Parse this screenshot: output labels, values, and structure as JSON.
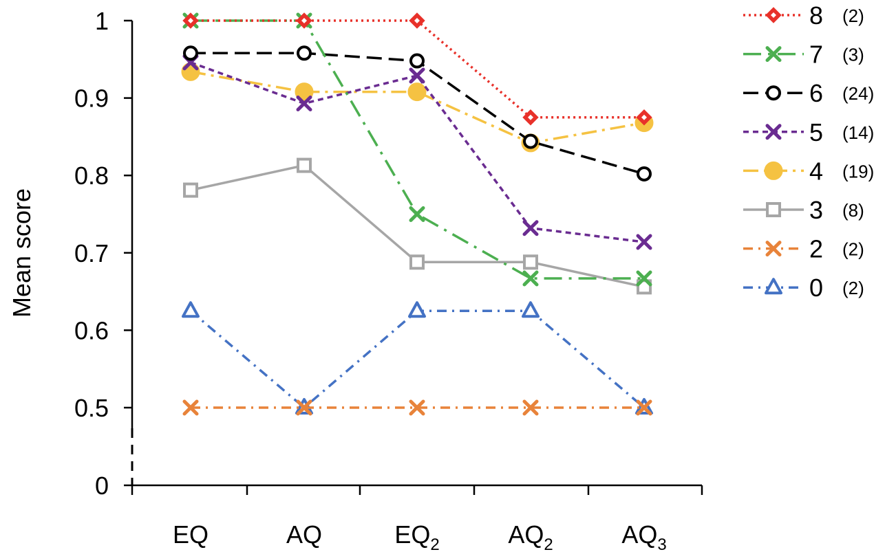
{
  "chart_data": {
    "type": "line",
    "ylabel": "Mean score",
    "categories": [
      {
        "base": "EQ",
        "sub": ""
      },
      {
        "base": "AQ",
        "sub": ""
      },
      {
        "base": "EQ",
        "sub": "2"
      },
      {
        "base": "AQ",
        "sub": "2"
      },
      {
        "base": "AQ",
        "sub": "3"
      }
    ],
    "y_axis": {
      "broken": true,
      "ticks": [
        {
          "label": "1",
          "value": 1.0
        },
        {
          "label": "0.9",
          "value": 0.9
        },
        {
          "label": "0.8",
          "value": 0.8
        },
        {
          "label": "0.7",
          "value": 0.7
        },
        {
          "label": "0.6",
          "value": 0.6
        },
        {
          "label": "0.5",
          "value": 0.5
        },
        {
          "label": "0",
          "value": 0
        }
      ],
      "ylim_upper": [
        0.5,
        1.0
      ]
    },
    "grid": false,
    "legend_position": "right",
    "series": [
      {
        "name": "8",
        "count": "(2)",
        "color": "#e8312a",
        "marker": "diamond",
        "dash": "dotted",
        "values": [
          1.0,
          1.0,
          1.0,
          0.875,
          0.875
        ]
      },
      {
        "name": "7",
        "count": "(3)",
        "color": "#4caf50",
        "marker": "x",
        "dash": "dashdot-long",
        "values": [
          1.0,
          1.0,
          0.75,
          0.667,
          0.667
        ]
      },
      {
        "name": "6",
        "count": "(24)",
        "color": "#000000",
        "marker": "circle-open",
        "dash": "long-dash",
        "values": [
          0.958,
          0.958,
          0.948,
          0.844,
          0.802
        ]
      },
      {
        "name": "5",
        "count": "(14)",
        "color": "#6a2c91",
        "marker": "x",
        "dash": "short-dash",
        "values": [
          0.946,
          0.893,
          0.929,
          0.732,
          0.714
        ]
      },
      {
        "name": "4",
        "count": "(19)",
        "color": "#f5c242",
        "marker": "circle-filled",
        "dash": "long-dash-dot",
        "values": [
          0.934,
          0.908,
          0.908,
          0.842,
          0.868
        ]
      },
      {
        "name": "3",
        "count": "(8)",
        "color": "#a6a6a6",
        "marker": "square-open",
        "dash": "solid",
        "values": [
          0.781,
          0.813,
          0.688,
          0.688,
          0.656
        ]
      },
      {
        "name": "2",
        "count": "(2)",
        "color": "#e8833a",
        "marker": "x",
        "dash": "dashdot",
        "values": [
          0.5,
          0.5,
          0.5,
          0.5,
          0.5
        ]
      },
      {
        "name": "0",
        "count": "(2)",
        "color": "#4472c4",
        "marker": "triangle-open",
        "dash": "dashdot",
        "values": [
          0.625,
          0.5,
          0.625,
          0.625,
          0.5
        ]
      }
    ]
  }
}
